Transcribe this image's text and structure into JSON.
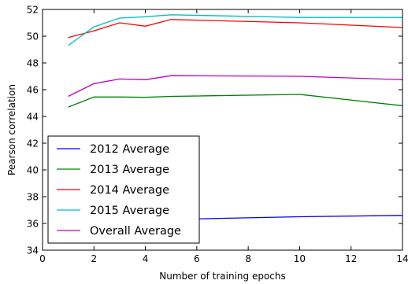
{
  "chart_data": {
    "type": "line",
    "title": "",
    "xlabel": "Number of training epochs",
    "ylabel": "Pearson correlation",
    "xlim": [
      0,
      14
    ],
    "ylim": [
      34,
      52
    ],
    "xticks": [
      0,
      2,
      4,
      6,
      8,
      10,
      12,
      14
    ],
    "yticks": [
      34,
      36,
      38,
      40,
      42,
      44,
      46,
      48,
      50,
      52
    ],
    "grid": false,
    "legend_position": "lower-left",
    "series": [
      {
        "name": "2012 Average",
        "color": "#0000ff",
        "x": [
          1,
          2,
          3,
          4,
          5,
          10,
          14
        ],
        "y": [
          35.9,
          36.1,
          36.2,
          36.2,
          36.3,
          36.5,
          36.6
        ]
      },
      {
        "name": "2013 Average",
        "color": "#008000",
        "x": [
          1,
          2,
          3,
          4,
          5,
          10,
          14
        ],
        "y": [
          44.7,
          45.45,
          45.45,
          45.43,
          45.5,
          45.65,
          44.8
        ]
      },
      {
        "name": "2014 Average",
        "color": "#ff0000",
        "x": [
          1,
          2,
          3,
          4,
          5,
          10,
          14
        ],
        "y": [
          49.9,
          50.4,
          51.0,
          50.75,
          51.25,
          51.0,
          50.65
        ]
      },
      {
        "name": "2015 Average",
        "color": "#00bfbf",
        "x": [
          1,
          2,
          3,
          4,
          5,
          10,
          14
        ],
        "y": [
          49.3,
          50.7,
          51.35,
          51.45,
          51.6,
          51.4,
          51.4
        ]
      },
      {
        "name": "Overall Average",
        "color": "#bf00bf",
        "x": [
          1,
          2,
          3,
          4,
          5,
          10,
          14
        ],
        "y": [
          45.5,
          46.45,
          46.8,
          46.75,
          47.05,
          47.0,
          46.75
        ]
      }
    ]
  }
}
